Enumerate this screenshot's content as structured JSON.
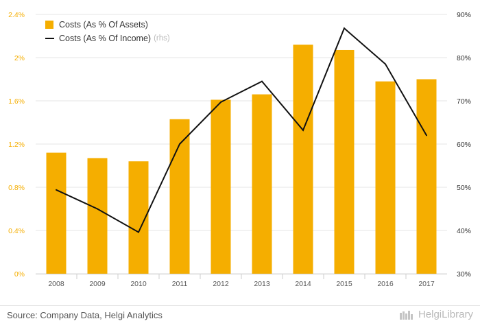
{
  "chart_data": {
    "type": "bar",
    "categories": [
      "2008",
      "2009",
      "2010",
      "2011",
      "2012",
      "2013",
      "2014",
      "2015",
      "2016",
      "2017"
    ],
    "series": [
      {
        "name": "Costs (As % Of Assets)",
        "type": "bar",
        "axis": "left",
        "color": "#f5ae00",
        "values": [
          1.12,
          1.07,
          1.04,
          1.43,
          1.61,
          1.66,
          2.12,
          2.07,
          1.78,
          1.8
        ]
      },
      {
        "name": "Costs (As % Of Income)",
        "name_suffix": "(rhs)",
        "type": "line",
        "axis": "right",
        "color": "#111111",
        "values": [
          49.4,
          45.0,
          39.6,
          60.0,
          69.7,
          74.5,
          63.2,
          86.8,
          78.5,
          62.0
        ]
      }
    ],
    "y_left": {
      "ylim": [
        0,
        2.4
      ],
      "ticks": [
        0,
        0.4,
        0.8,
        1.2,
        1.6,
        2.0,
        2.4
      ],
      "tick_labels": [
        "0%",
        "0.4%",
        "0.8%",
        "1.2%",
        "1.6%",
        "2%",
        "2.4%"
      ],
      "tick_color": "#f5ae00"
    },
    "y_right": {
      "ylim": [
        30,
        90
      ],
      "ticks": [
        30,
        40,
        50,
        60,
        70,
        80,
        90
      ],
      "tick_labels": [
        "30%",
        "40%",
        "50%",
        "60%",
        "70%",
        "80%",
        "90%"
      ],
      "tick_color": "#333333"
    },
    "grid": true,
    "legend_position": "top-left",
    "title": "",
    "xlabel": "",
    "ylabel": ""
  },
  "footer": {
    "source": "Source: Company Data, Helgi Analytics",
    "brand": "HelgiLibrary"
  }
}
